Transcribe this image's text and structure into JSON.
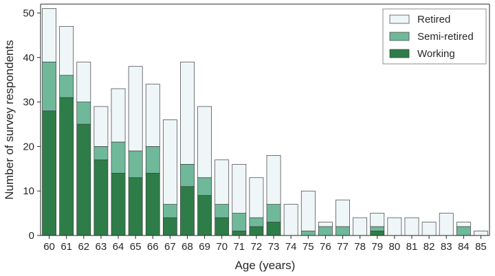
{
  "chart_data": {
    "type": "bar",
    "stacked": true,
    "xlabel": "Age (years)",
    "ylabel": "Number of survey respondents",
    "ylim": [
      0,
      52
    ],
    "yticks": [
      0,
      10,
      20,
      30,
      40,
      50
    ],
    "grid": false,
    "legend_position": "top-right",
    "categories": [
      "60",
      "61",
      "62",
      "63",
      "64",
      "65",
      "66",
      "67",
      "68",
      "69",
      "70",
      "71",
      "72",
      "73",
      "74",
      "75",
      "76",
      "77",
      "78",
      "79",
      "80",
      "81",
      "82",
      "83",
      "84",
      "85"
    ],
    "series": [
      {
        "name": "Working",
        "color": "#2e7d48",
        "values": [
          28,
          31,
          25,
          17,
          14,
          13,
          14,
          4,
          11,
          9,
          4,
          1,
          2,
          3,
          0,
          0,
          0,
          0,
          0,
          1,
          0,
          0,
          0,
          0,
          0,
          0
        ]
      },
      {
        "name": "Semi-retired",
        "color": "#6fb99a",
        "values": [
          11,
          5,
          5,
          3,
          7,
          6,
          6,
          3,
          5,
          4,
          3,
          4,
          2,
          4,
          0,
          1,
          2,
          2,
          0,
          1,
          0,
          0,
          0,
          0,
          2,
          0
        ]
      },
      {
        "name": "Retired",
        "color": "#eef6f8",
        "values": [
          12,
          11,
          9,
          9,
          12,
          19,
          14,
          19,
          23,
          16,
          10,
          11,
          9,
          11,
          7,
          9,
          1,
          6,
          4,
          3,
          4,
          4,
          3,
          5,
          1,
          1
        ]
      }
    ],
    "legend_order": [
      "Retired",
      "Semi-retired",
      "Working"
    ]
  }
}
